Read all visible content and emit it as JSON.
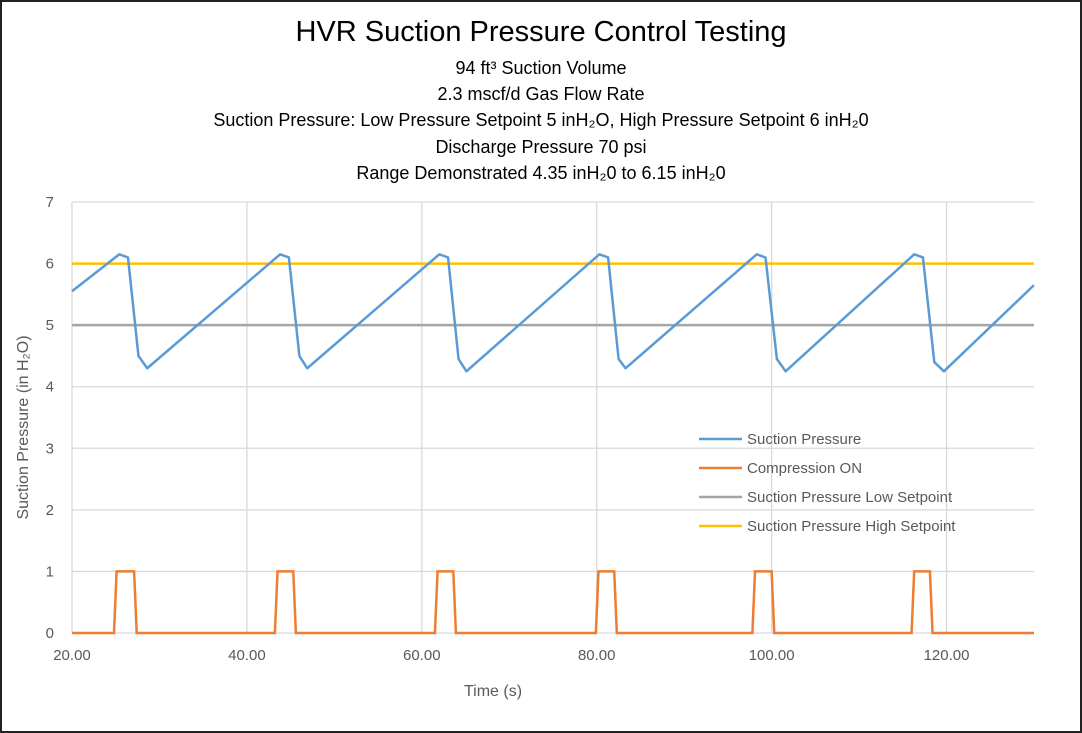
{
  "chart_data": {
    "type": "line",
    "title": "HVR Suction Pressure Control Testing",
    "subtitles": [
      "94 ft³ Suction Volume",
      "2.3 mscf/d Gas Flow Rate",
      "Suction Pressure: Low Pressure Setpoint 5 inH₂O, High Pressure Setpoint 6 inH₂0",
      "Discharge Pressure 70 psi",
      "Range Demonstrated 4.35 inH₂0 to 6.15 inH₂0"
    ],
    "xlabel": "Time (s)",
    "ylabel": "Suction Pressure (in H₂O)",
    "xlim": [
      20,
      130
    ],
    "ylim": [
      0,
      7
    ],
    "xticks": [
      20,
      40,
      60,
      80,
      100,
      120
    ],
    "xtick_labels": [
      "20.00",
      "40.00",
      "60.00",
      "80.00",
      "100.00",
      "120.00"
    ],
    "yticks": [
      0,
      1,
      2,
      3,
      4,
      5,
      6,
      7
    ],
    "ytick_labels": [
      "0",
      "1",
      "2",
      "3",
      "4",
      "5",
      "6",
      "7"
    ],
    "grid": true,
    "legend_position": "center-right",
    "series": [
      {
        "name": "Suction Pressure",
        "color": "#5B9BD5",
        "x": [
          20,
          25.4,
          26.4,
          27.6,
          28.6,
          43.8,
          44.8,
          46.0,
          46.9,
          62.0,
          63.0,
          64.2,
          65.1,
          80.3,
          81.3,
          82.5,
          83.3,
          98.3,
          99.3,
          100.6,
          101.6,
          116.3,
          117.3,
          118.6,
          119.7,
          130
        ],
        "y": [
          5.55,
          6.15,
          6.1,
          4.5,
          4.3,
          6.15,
          6.1,
          4.5,
          4.3,
          6.15,
          6.1,
          4.45,
          4.25,
          6.15,
          6.1,
          4.45,
          4.3,
          6.15,
          6.1,
          4.45,
          4.25,
          6.15,
          6.1,
          4.4,
          4.25,
          5.65
        ]
      },
      {
        "name": "Compression ON",
        "color": "#ED7D31",
        "on_intervals": [
          [
            24.8,
            27.4
          ],
          [
            43.2,
            45.6
          ],
          [
            61.5,
            63.9
          ],
          [
            79.9,
            82.3
          ],
          [
            97.8,
            100.3
          ],
          [
            116.0,
            118.4
          ]
        ]
      },
      {
        "name": "Suction Pressure Low Setpoint",
        "color": "#A5A5A5",
        "value": 5
      },
      {
        "name": "Suction Pressure High Setpoint",
        "color": "#FFC000",
        "value": 6
      }
    ]
  }
}
